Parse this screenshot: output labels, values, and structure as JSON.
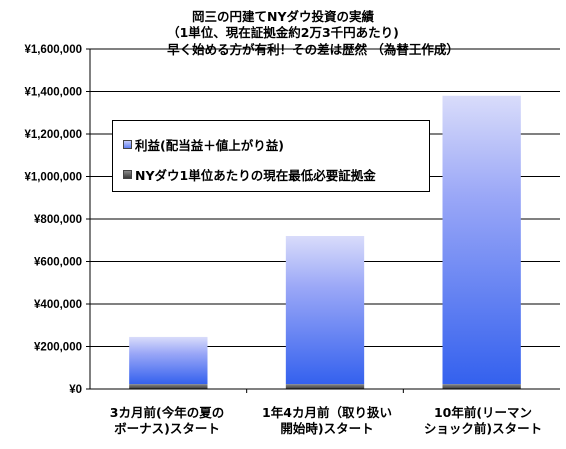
{
  "title_lines": [
    "岡三の円建てNYダウ投資の実績",
    "（1単位、現在証拠金約2万3千円あたり)",
    "早く始める方が有利！その差は歴然 （為替王作成）"
  ],
  "chart_data": {
    "type": "bar",
    "stacked": true,
    "categories": [
      [
        "3カ月前(今年の夏の",
        "ボーナス)スタート"
      ],
      [
        "1年4カ月前（取り扱い",
        "開始時)スタート"
      ],
      [
        "10年前(リーマン",
        "ショック前)スタート"
      ]
    ],
    "series": [
      {
        "name": "NYダウ1単位あたりの現在最低必要証拠金",
        "values": [
          23000,
          23000,
          23000
        ],
        "color": "#555555"
      },
      {
        "name": "利益(配当益＋値上がり益)",
        "values": [
          222000,
          697000,
          1357000
        ],
        "color": "#4169f5"
      }
    ],
    "ylim": [
      0,
      1600000
    ],
    "yticks": [
      0,
      200000,
      400000,
      600000,
      800000,
      1000000,
      1200000,
      1400000,
      1600000
    ],
    "ytick_labels": [
      "¥0",
      "¥200,000",
      "¥400,000",
      "¥600,000",
      "¥800,000",
      "¥1,000,000",
      "¥1,200,000",
      "¥1,400,000",
      "¥1,600,000"
    ],
    "grid": true,
    "legend_position": "upper-left"
  }
}
